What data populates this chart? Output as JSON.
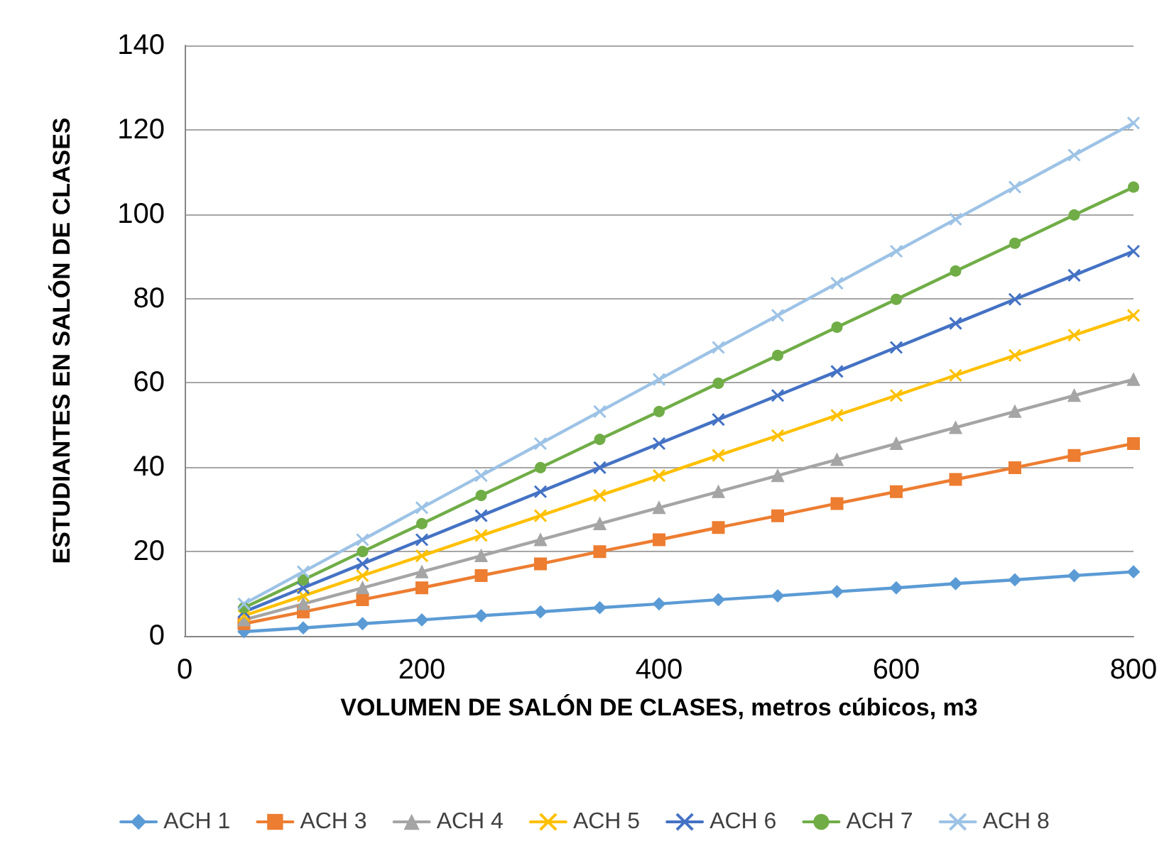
{
  "chart_data": {
    "type": "line",
    "xlabel": "VOLUMEN DE SALÓN DE CLASES, metros cúbicos, m3",
    "ylabel": "ESTUDIANTES EN SALÓN DE CLASES",
    "x": [
      50,
      100,
      150,
      200,
      250,
      300,
      350,
      400,
      450,
      500,
      550,
      600,
      650,
      700,
      750,
      800
    ],
    "series": [
      {
        "name": "ACH 1",
        "color": "#5b9bd5",
        "marker": "diamond",
        "values": [
          1.0,
          1.9,
          2.9,
          3.8,
          4.8,
          5.7,
          6.7,
          7.6,
          8.6,
          9.5,
          10.5,
          11.4,
          12.4,
          13.3,
          14.3,
          15.2
        ]
      },
      {
        "name": "ACH 3",
        "color": "#ed7d31",
        "marker": "square",
        "values": [
          2.9,
          5.7,
          8.6,
          11.4,
          14.3,
          17.1,
          20.0,
          22.8,
          25.7,
          28.5,
          31.4,
          34.2,
          37.1,
          39.9,
          42.8,
          45.6
        ]
      },
      {
        "name": "ACH 4",
        "color": "#a5a5a5",
        "marker": "triangle",
        "values": [
          3.8,
          7.6,
          11.4,
          15.2,
          19.0,
          22.8,
          26.6,
          30.4,
          34.2,
          38.0,
          41.8,
          45.6,
          49.4,
          53.2,
          57.0,
          60.8
        ]
      },
      {
        "name": "ACH 5",
        "color": "#ffc000",
        "marker": "cross",
        "values": [
          4.8,
          9.5,
          14.3,
          19.0,
          23.8,
          28.5,
          33.3,
          38.0,
          42.8,
          47.5,
          52.3,
          57.0,
          61.8,
          66.5,
          71.3,
          76.0
        ]
      },
      {
        "name": "ACH 6",
        "color": "#4472c4",
        "marker": "cross",
        "values": [
          5.7,
          11.4,
          17.1,
          22.8,
          28.5,
          34.2,
          39.9,
          45.6,
          51.3,
          57.0,
          62.7,
          68.4,
          74.1,
          79.8,
          85.5,
          91.2
        ]
      },
      {
        "name": "ACH 7",
        "color": "#70ad47",
        "marker": "circle",
        "values": [
          6.7,
          13.3,
          20.0,
          26.6,
          33.3,
          39.9,
          46.6,
          53.2,
          59.9,
          66.5,
          73.2,
          79.8,
          86.5,
          93.1,
          99.8,
          106.4
        ]
      },
      {
        "name": "ACH 8",
        "color": "#9dc3e6",
        "marker": "cross",
        "values": [
          7.6,
          15.2,
          22.8,
          30.4,
          38.0,
          45.6,
          53.2,
          60.8,
          68.4,
          76.0,
          83.6,
          91.2,
          98.8,
          106.4,
          114.0,
          121.6
        ]
      }
    ],
    "xlim": [
      0,
      800
    ],
    "xticks": [
      0,
      200,
      400,
      600,
      800
    ],
    "ylim": [
      0,
      140
    ],
    "yticks": [
      0,
      20,
      40,
      60,
      80,
      100,
      120,
      140
    ],
    "grid": "y",
    "legend": "bottom",
    "line_style": "solid"
  }
}
